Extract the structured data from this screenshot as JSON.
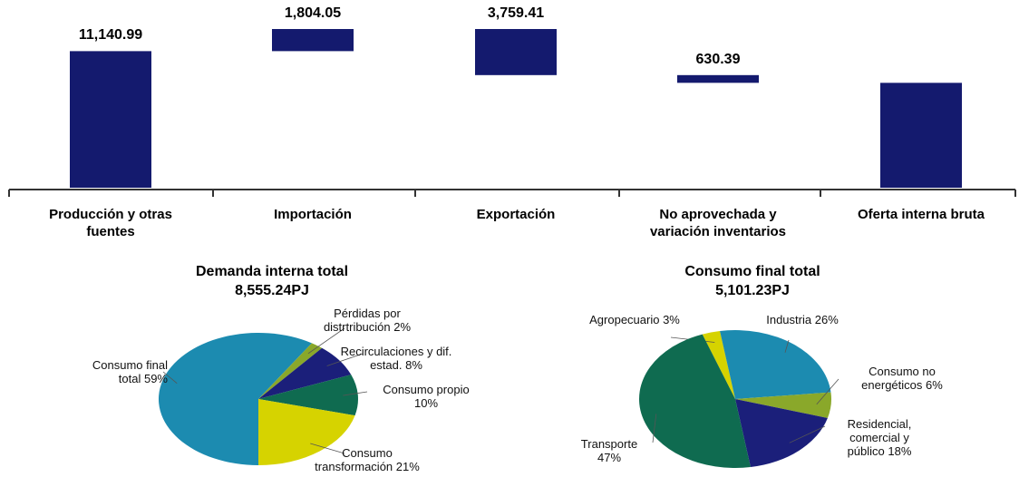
{
  "chart_data": [
    {
      "type": "waterfall",
      "categories": [
        "Producción y otras fuentes",
        "Importación",
        "Exportación",
        "No aprovechada y variación inventarios",
        "Oferta interna bruta"
      ],
      "values": [
        11140.99,
        1804.05,
        3759.41,
        630.39,
        8555.24
      ],
      "value_labels": [
        "11,140.99",
        "1,804.05",
        "3,759.41",
        "630.39",
        null
      ],
      "directions": [
        "total",
        "increase",
        "decrease",
        "decrease",
        "total"
      ],
      "color": "#141a6e"
    },
    {
      "type": "pie",
      "title": "Demanda interna total",
      "subtitle": "8,555.24PJ",
      "categories": [
        "Consumo final total",
        "Pérdidas por distrtribución",
        "Recirculaciones y dif. estad.",
        "Consumo propio",
        "Consumo transformación"
      ],
      "values": [
        59,
        2,
        8,
        10,
        21
      ],
      "value_labels": [
        "59%",
        "2%",
        "8%",
        "10%",
        "21%"
      ],
      "colors": [
        "#1c8bb0",
        "#8aa82a",
        "#1b1f7a",
        "#0f6b50",
        "#d6d300"
      ]
    },
    {
      "type": "pie",
      "title": "Consumo final total",
      "subtitle": "5,101.23PJ",
      "categories": [
        "Agropecuario",
        "Industria",
        "Consumo no energéticos",
        "Residencial, comercial y público",
        "Transporte"
      ],
      "values": [
        3,
        26,
        6,
        18,
        47
      ],
      "value_labels": [
        "3%",
        "26%",
        "6%",
        "18%",
        "47%"
      ],
      "colors": [
        "#d6d300",
        "#1c8bb0",
        "#8aa82a",
        "#1b1f7a",
        "#0f6b50"
      ]
    }
  ]
}
